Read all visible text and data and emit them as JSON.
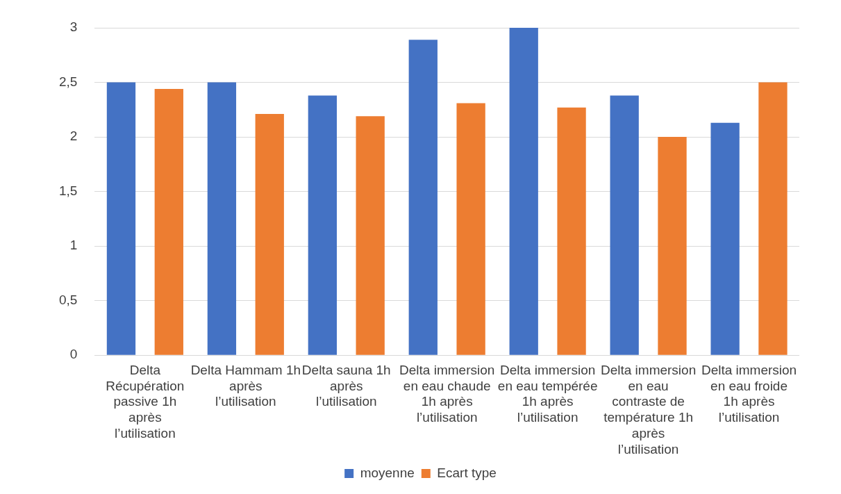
{
  "chart_data": {
    "type": "bar",
    "categories": [
      "Delta Récupération passive 1h après l’utilisation",
      "Delta Hammam 1h après l’utilisation",
      "Delta sauna 1h après l’utilisation",
      "Delta immersion en eau chaude 1h après l’utilisation",
      "Delta immersion en eau tempérée 1h après l’utilisation",
      "Delta immersion en eau contraste de température 1h après l’utilisation",
      "Delta immersion en eau froide 1h après l’utilisation"
    ],
    "series": [
      {
        "name": "moyenne",
        "color": "#4472c4",
        "values": [
          2.5,
          2.5,
          2.38,
          2.89,
          3.0,
          2.38,
          2.13
        ]
      },
      {
        "name": "Ecart type",
        "color": "#ed7d31",
        "values": [
          2.44,
          2.21,
          2.19,
          2.31,
          2.27,
          2.0,
          2.5
        ]
      }
    ],
    "ylim": [
      0,
      3
    ],
    "yticks": [
      0,
      {
        "value": 0.5,
        "label": "0,5"
      },
      1,
      {
        "value": 1.5,
        "label": "1,5"
      },
      2,
      {
        "value": 2.5,
        "label": "2,5"
      },
      3
    ],
    "grid": "y",
    "legend": "bottom"
  }
}
